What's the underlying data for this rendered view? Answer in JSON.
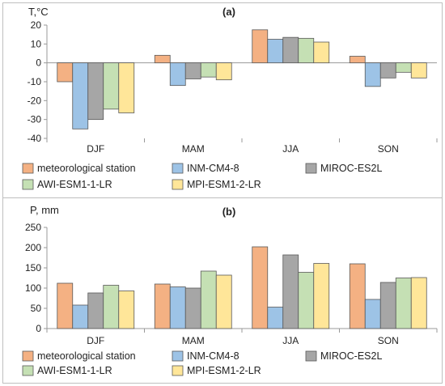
{
  "figure": {
    "legend_entries": [
      "meteorological station",
      "INM-CM4-8",
      "MIROC-ES2L",
      "AWI-ESM1-1-LR",
      "MPI-ESM1-2-LR"
    ],
    "colors": [
      "#F4B183",
      "#9DC3E6",
      "#A6A6A6",
      "#C5E0B4",
      "#FFE699"
    ]
  },
  "chart_data": [
    {
      "type": "bar",
      "title": "(a)",
      "ylabel": "T,°C",
      "categories": [
        "DJF",
        "MAM",
        "JJA",
        "SON"
      ],
      "ylim": [
        -40,
        20
      ],
      "yticks": [
        20,
        10,
        0,
        -10,
        -20,
        -30,
        -40
      ],
      "grid": false,
      "legend_placement": "bottom",
      "series": [
        {
          "name": "meteorological station",
          "values": [
            -10,
            4,
            17.5,
            3.5
          ]
        },
        {
          "name": "INM-CM4-8",
          "values": [
            -35,
            -12,
            12.5,
            -12.5
          ]
        },
        {
          "name": "MIROC-ES2L",
          "values": [
            -30,
            -8.5,
            13.5,
            -8
          ]
        },
        {
          "name": "AWI-ESM1-1-LR",
          "values": [
            -24.5,
            -7.5,
            13,
            -5
          ]
        },
        {
          "name": "MPI-ESM1-2-LR",
          "values": [
            -26.5,
            -9,
            11,
            -8
          ]
        }
      ]
    },
    {
      "type": "bar",
      "title": "(b)",
      "ylabel": "P, mm",
      "categories": [
        "DJF",
        "MAM",
        "JJA",
        "SON"
      ],
      "ylim": [
        0,
        250
      ],
      "yticks": [
        250,
        200,
        150,
        100,
        50,
        0
      ],
      "grid": false,
      "legend_placement": "bottom",
      "series": [
        {
          "name": "meteorological station",
          "values": [
            112,
            110,
            202,
            160
          ]
        },
        {
          "name": "INM-CM4-8",
          "values": [
            58,
            103,
            53,
            72
          ]
        },
        {
          "name": "MIROC-ES2L",
          "values": [
            88,
            100,
            182,
            114
          ]
        },
        {
          "name": "AWI-ESM1-1-LR",
          "values": [
            107,
            142,
            139,
            125
          ]
        },
        {
          "name": "MPI-ESM1-2-LR",
          "values": [
            93,
            132,
            161,
            126
          ]
        }
      ]
    }
  ]
}
